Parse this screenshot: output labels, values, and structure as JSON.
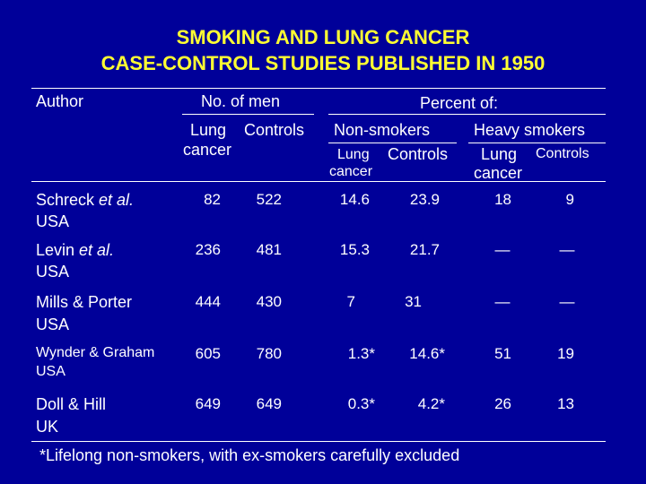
{
  "title": {
    "line1": "SMOKING AND LUNG CANCER",
    "line2": "CASE-CONTROL STUDIES PUBLISHED IN 1950"
  },
  "header": {
    "author": "Author",
    "no_of_men": "No. of men",
    "percent_of": "Percent of:",
    "lung_cancer_line1": "Lung",
    "lung_cancer_line2": "cancer",
    "controls": "Controls",
    "non_smokers": "Non-smokers",
    "heavy_smokers": "Heavy smokers",
    "sub_lung_line1": "Lung",
    "sub_lung_line2": "cancer",
    "sub_controls": "Controls"
  },
  "rows": [
    {
      "author_name": "Schreck",
      "author_suffix": " et al.",
      "country": "USA",
      "lung_n": "82",
      "control_n": "522",
      "ns_lung": "14.6",
      "ns_ctrl": "23.9",
      "hs_lung": "18",
      "hs_ctrl": "9"
    },
    {
      "author_name": "Levin",
      "author_suffix": " et al.",
      "country": "USA",
      "lung_n": "236",
      "control_n": "481",
      "ns_lung": "15.3",
      "ns_ctrl": "21.7",
      "hs_lung": "—",
      "hs_ctrl": "—"
    },
    {
      "author_name": "Mills & Porter",
      "author_suffix": "",
      "country": "USA",
      "lung_n": "444",
      "control_n": "430",
      "ns_lung": "7",
      "ns_ctrl": "31",
      "hs_lung": "—",
      "hs_ctrl": "—"
    },
    {
      "author_name": "Wynder & Graham",
      "author_suffix": "",
      "country": "USA",
      "lung_n": "605",
      "control_n": "780",
      "ns_lung": "1.3*",
      "ns_ctrl": "14.6*",
      "hs_lung": "51",
      "hs_ctrl": "19"
    },
    {
      "author_name": "Doll & Hill",
      "author_suffix": "",
      "country": "UK",
      "lung_n": "649",
      "control_n": "649",
      "ns_lung": "0.3*",
      "ns_ctrl": "4.2*",
      "hs_lung": "26",
      "hs_ctrl": "13"
    }
  ],
  "footnote": "*Lifelong non-smokers, with ex-smokers carefully excluded",
  "colors": {
    "background": "#000099",
    "title": "#ffff33",
    "text": "#ffffff"
  }
}
